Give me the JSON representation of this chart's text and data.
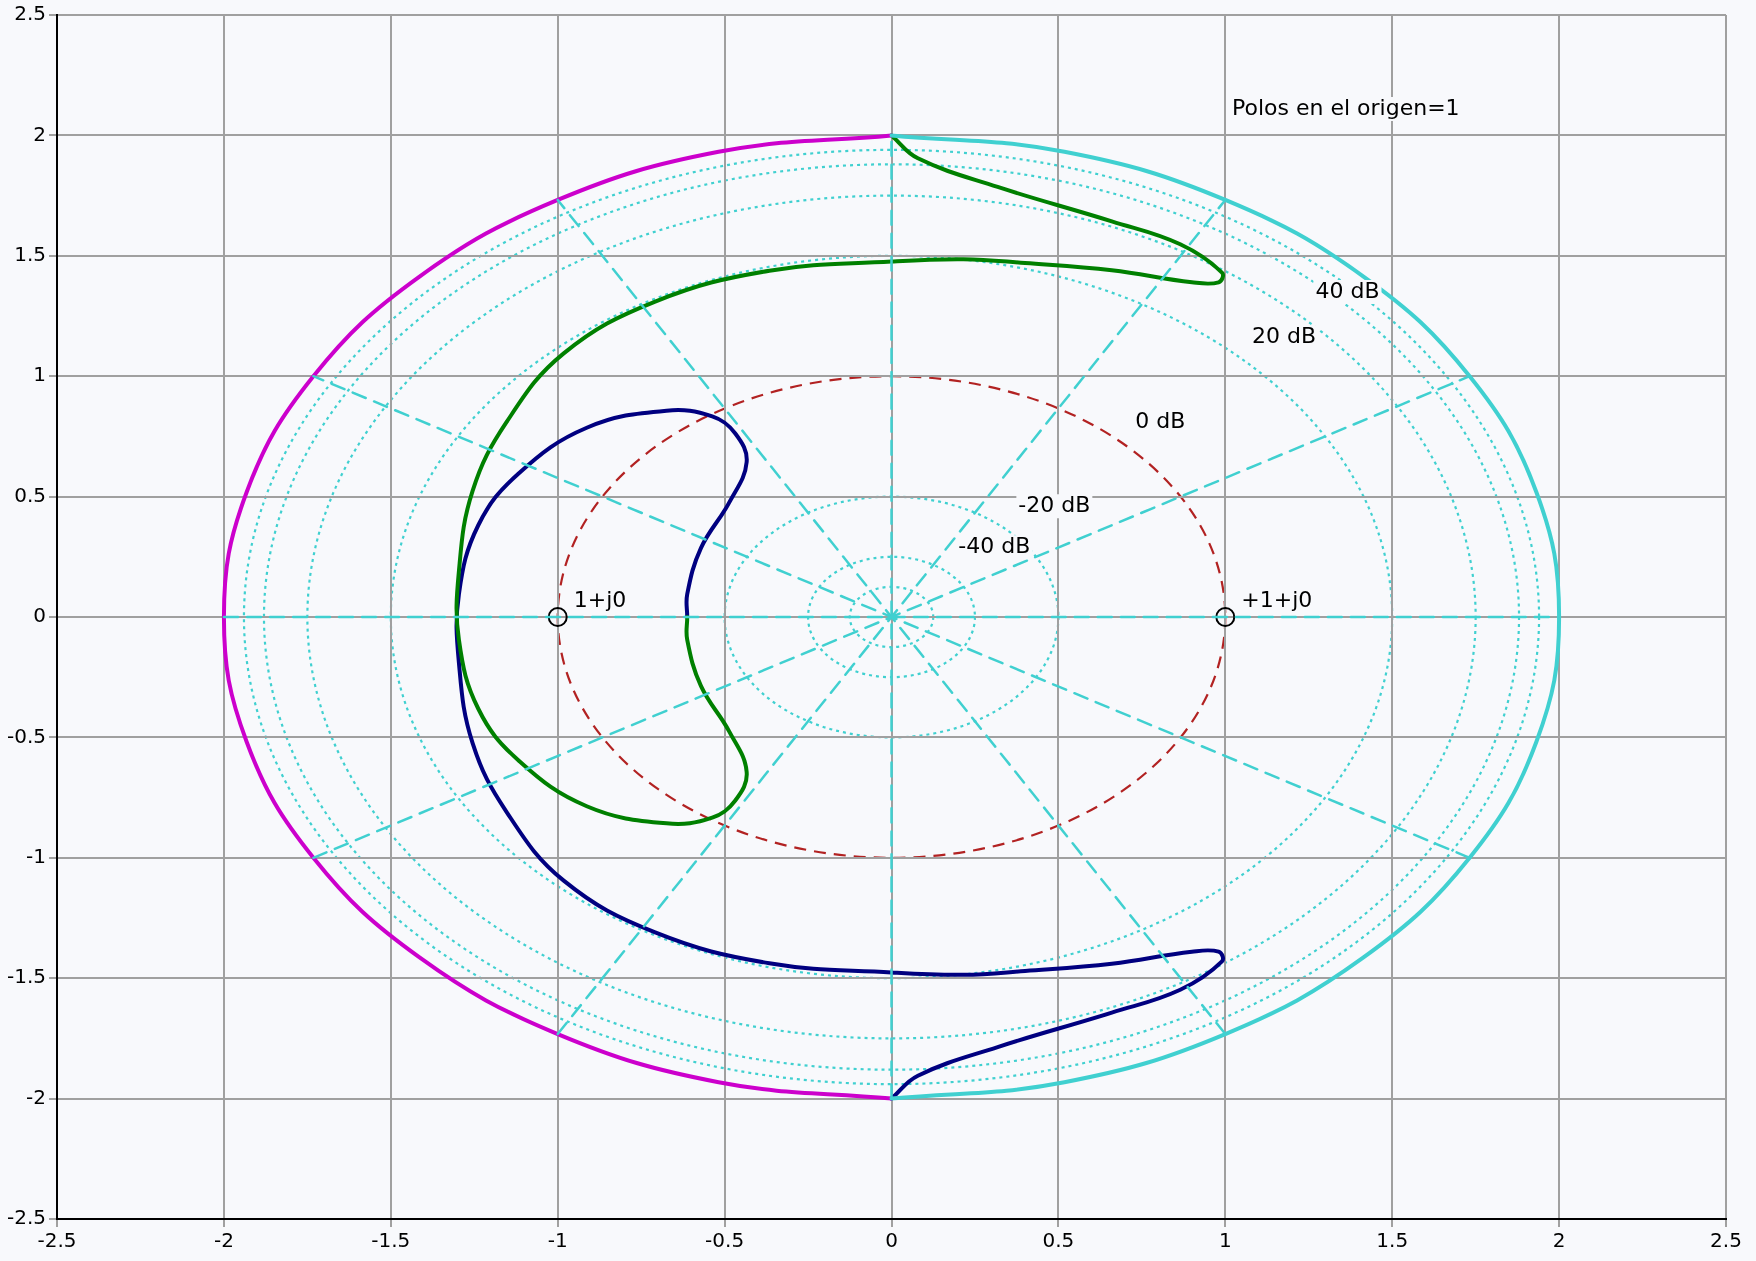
{
  "chart_data": {
    "type": "line",
    "xlim": [
      -2.5,
      2.5
    ],
    "ylim": [
      -2.5,
      2.5
    ],
    "xticks": [
      -2.5,
      -2,
      -1.5,
      -1,
      -0.5,
      0,
      0.5,
      1,
      1.5,
      2,
      2.5
    ],
    "yticks": [
      -2.5,
      -2,
      -1.5,
      -1,
      -0.5,
      0,
      0.5,
      1,
      1.5,
      2,
      2.5
    ],
    "grid": true,
    "marker": "none",
    "series": [
      {
        "type": "line",
        "color": "#40d0d0",
        "line_style": "dashed",
        "x": [
          -2,
          2
        ],
        "values": [
          0,
          0
        ]
      },
      {
        "type": "line",
        "color": "#40d0d0",
        "line_style": "dashed",
        "x": [
          -1.732,
          1.732
        ],
        "values": [
          -1,
          1
        ]
      },
      {
        "type": "line",
        "color": "#40d0d0",
        "line_style": "dashed",
        "x": [
          -1,
          1
        ],
        "values": [
          -1.732,
          1.732
        ]
      },
      {
        "type": "line",
        "color": "#40d0d0",
        "line_style": "dashed",
        "x": [
          0,
          0
        ],
        "values": [
          -2,
          2
        ]
      },
      {
        "type": "line",
        "color": "#40d0d0",
        "line_style": "dashed",
        "x": [
          1,
          -1
        ],
        "values": [
          -1.732,
          1.732
        ]
      },
      {
        "type": "line",
        "color": "#40d0d0",
        "line_style": "dashed",
        "x": [
          1.732,
          -1.732
        ],
        "values": [
          -1,
          1
        ]
      },
      {
        "type": "line",
        "color": "#40d0d0",
        "line_style": "solid",
        "x": [
          0,
          0.518,
          1,
          1.414,
          1.732,
          1.932,
          2,
          1.932,
          1.732,
          1.414,
          1,
          0.518,
          0
        ],
        "values": [
          -2,
          -1.932,
          -1.732,
          -1.414,
          -1,
          -0.518,
          0,
          0.518,
          1,
          1.414,
          1.732,
          1.932,
          2
        ]
      },
      {
        "type": "line",
        "color": "#cc00cc",
        "line_style": "solid",
        "x": [
          0,
          -0.518,
          -1,
          -1.414,
          -1.732,
          -1.932,
          -2,
          -1.932,
          -1.732,
          -1.414,
          -1,
          -0.518,
          0
        ],
        "values": [
          2,
          1.932,
          1.732,
          1.414,
          1,
          0.518,
          0,
          -0.518,
          -1,
          -1.414,
          -1.732,
          -1.932,
          -2
        ]
      },
      {
        "type": "line",
        "color": "#008000",
        "line_style": "solid",
        "x": [
          0,
          0.079,
          0.318,
          0.66,
          0.865,
          0.99,
          0.98,
          0.9,
          0.66,
          0.4,
          0.215,
          0,
          -0.366,
          -0.708,
          -0.982,
          -1.153,
          -1.255,
          -1.296,
          -1.296,
          -1.238,
          -1.118,
          -0.913,
          -0.674,
          -0.537,
          -0.468,
          -0.434,
          -0.486,
          -0.571,
          -0.612,
          -0.612
        ],
        "values": [
          2,
          1.905,
          1.786,
          1.643,
          1.548,
          1.43,
          1.39,
          1.39,
          1.44,
          1.47,
          1.486,
          1.476,
          1.438,
          1.31,
          1.095,
          0.81,
          0.524,
          0.19,
          -0.095,
          -0.381,
          -0.595,
          -0.786,
          -0.857,
          -0.833,
          -0.762,
          -0.643,
          -0.476,
          -0.286,
          -0.095,
          0
        ]
      },
      {
        "type": "line",
        "color": "#000080",
        "line_style": "solid",
        "x": [
          0,
          0.079,
          0.318,
          0.66,
          0.865,
          0.99,
          0.98,
          0.9,
          0.66,
          0.4,
          0.215,
          0,
          -0.366,
          -0.708,
          -0.982,
          -1.153,
          -1.255,
          -1.296,
          -1.296,
          -1.238,
          -1.118,
          -0.913,
          -0.674,
          -0.537,
          -0.468,
          -0.434,
          -0.486,
          -0.571,
          -0.612,
          -0.612
        ],
        "values": [
          -2,
          -1.905,
          -1.786,
          -1.643,
          -1.548,
          -1.43,
          -1.39,
          -1.39,
          -1.44,
          -1.47,
          -1.486,
          -1.476,
          -1.438,
          -1.31,
          -1.095,
          -0.81,
          -0.524,
          -0.19,
          0.095,
          0.381,
          0.595,
          0.786,
          0.857,
          0.833,
          0.762,
          0.643,
          0.476,
          0.286,
          0.095,
          0
        ]
      },
      {
        "type": "scatter",
        "color": "#000000",
        "marker": "circle",
        "x": [
          -1,
          1
        ],
        "values": [
          0,
          0
        ]
      }
    ],
    "annotations": [
      {
        "text": "1+j0",
        "x": -1,
        "y": 0
      },
      {
        "text": "+1+j0",
        "x": 1,
        "y": 0
      },
      "40 dB",
      "20 dB",
      "0 dB",
      "-20 dB",
      "-40 dB",
      "Polos en el origen=1"
    ]
  }
}
